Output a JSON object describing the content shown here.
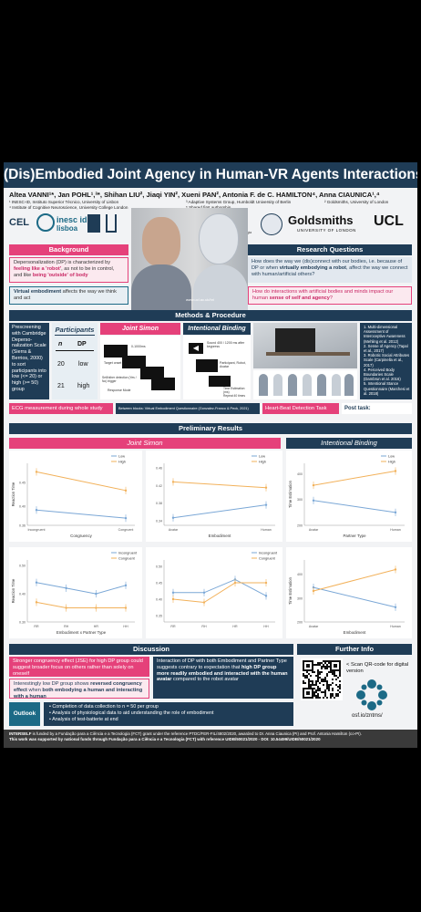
{
  "poster": {
    "title": "(Dis)Embodied Joint Agency in Human-VR Agents Interactions",
    "authors": "Altea VANNI¹*, Jan POHL¹,³*, Shihan LIU², Jiaqi YIN², Xueni PAN², Antonia F. de C. HAMILTON⁴, Anna CIAUNICA¹,⁴",
    "affiliations": [
      "¹ INESC-ID, Instituto Superior Técnico, University of Lisbon",
      "⁴ Institute of Cognitive Neuroscience, University College London",
      "³ Adaptive Systems Group, Humboldt University of Berlin",
      "* Shared first authorship",
      "² Goldsmiths, University of London"
    ],
    "logos": {
      "cel": "CEL",
      "inesc": "inesc id",
      "inesc_sub": "lisboa",
      "fct": "fct",
      "fct_sub": "Fundação para a Ciência e a Tecnologia",
      "gold": "Goldsmiths",
      "gold_sub": "UNIVERSITY OF LONDON",
      "ucl": "UCL"
    },
    "photo_caption": "www.ucl.ac.uk/hri",
    "background": {
      "header": "Background",
      "text1_pre": "Depersonalization (DP) is characterized by ",
      "text1_bold": "feeling like a 'robot'",
      "text1_mid": ", as not to be in control, and like ",
      "text1_bold2": "being 'outside' of body",
      "text2_pre": "Virtual embodiment",
      "text2_post": " affects the way we think and act"
    },
    "research": {
      "header": "Research Questions",
      "q1_pre": "How does the way we (dis)connect with our bodies, i.e. because of DP or when ",
      "q1_bold": "virtually embodying a robot",
      "q1_post": ", affect the way we connect with human/artificial others?",
      "q2_pre": "How do interactions with artificial bodies and minds impact our human ",
      "q2_bold": "sense of self and agency",
      "q2_post": "?"
    },
    "methods": {
      "header": "Methods & Procedure",
      "prescreen": "Prescreening with Cambridge Deperso-nalization Scale (Sierra & Berrios, 2000) to sort participants into low (<= 20) or high (>= 50) group",
      "participants_header": "Participants",
      "table_head": [
        "n",
        "DP"
      ],
      "table_rows": [
        [
          "20",
          "low"
        ],
        [
          "21",
          "high"
        ]
      ],
      "joint_simon": "Joint Simon",
      "intentional_binding": "Intentional Binding",
      "simon_labels": [
        "0-1000ms",
        "Target onset",
        "Self/other detection (Yes / No) trigger",
        "Response Mode"
      ],
      "binding_labels": [
        "Sound 400 / 1200 ms after keypress",
        "Participant, Robot, Avatar",
        "Time Estimation (ms)",
        "Repeat 40 times"
      ],
      "questionnaires": [
        "Multi-dimensional Assessment of Interoceptive Awareness (Mehling et al. 2012)",
        "Sense of Agency (Tapal et al., 2017)",
        "Robotic Social Attributes Scale (Carpinella et al., 2017)",
        "Perceived Body Boundaries Scale (Dambrun et al. 2016)",
        "Intentional Stance Questionnaire (Marchesi et al. 2018)"
      ],
      "ecg": "ECG measurement during whole study",
      "between_blocks": "Between blocks: Virtual Embodiment Questionnaire (Gonzalez-Franco & Peck, 2021)",
      "heartbeat": "Heart-Beat Detection Task",
      "posttask": "Post task:"
    },
    "results": {
      "header": "Preliminary Results",
      "joint_simon": "Joint Simon",
      "intentional_binding": "Intentional Binding"
    },
    "discussion": {
      "header": "Discussion",
      "d1": "Stronger congruency effect (JSE) for high DP group could suggest broader focus on others rather than solely on oneself",
      "d2_pre": "Interestingly low DP group shows ",
      "d2_bold": "reversed congruency effect",
      "d2_mid": " when ",
      "d2_bold2": "both embodying a human and interacting with a human",
      "d3_pre": "Interaction of DP with both Embodiment and Partner Type suggests contrary to expectation that ",
      "d3_bold": "high DP group more readily embodied and interacted with the human avatar",
      "d3_post": " compared to the robot avatar",
      "outlook_label": "Outlook",
      "outlook": [
        "Completion of data collection to n = 50 per group",
        "Analysis of physiological data to aid understanding the role of embodiment",
        "Analysis of test-batterie at end"
      ]
    },
    "further": {
      "header": "Further Info",
      "scan": "< Scan QR-code for digital version",
      "osf": "osf.io/zntms/"
    },
    "funding": {
      "line1_bold": "INTERSELF",
      "line1": " is funded by a Fundação para a Ciência e a Tecnologia (FCT) grant under the reference PTDC/FER-FIL/4802/2020, awarded to Dr. Anna Ciaunica (PI) and Prof. Antonia Hamilton (co-PI).",
      "line2": "This work was supported by national funds through Fundação para a Ciência e a Tecnologia (FCT) with reference UIDB/50021/2020 - DOI: 10.54499/UIDB/50021/2020"
    }
  },
  "colors": {
    "pink": "#e5417a",
    "navy": "#1f3c56",
    "teal": "#1c6a86",
    "low": "#7aa7d6",
    "high": "#f2b15a",
    "incongruent": "#7aa7d6",
    "congruent": "#f2b15a"
  },
  "chart_data": [
    {
      "type": "line",
      "xlabel": "Congruency",
      "ylabel": "Reaction Time",
      "categories": [
        "Incongruent",
        "Congruent"
      ],
      "ylim": [
        0.36,
        0.49
      ],
      "ticks": [
        "0.36",
        "0.40",
        "0.45"
      ],
      "series": [
        {
          "name": "Low",
          "values": [
            0.392,
            0.375
          ]
        },
        {
          "name": "High",
          "values": [
            0.472,
            0.433
          ]
        }
      ]
    },
    {
      "type": "line",
      "xlabel": "Embodiment",
      "ylabel": "",
      "categories": [
        "Avatar",
        "Human"
      ],
      "ylim": [
        0.33,
        0.47
      ],
      "ticks": [
        "0.34",
        "0.38",
        "0.42",
        "0.46"
      ],
      "series": [
        {
          "name": "Low",
          "values": [
            0.347,
            0.376
          ]
        },
        {
          "name": "High",
          "values": [
            0.428,
            0.415
          ]
        }
      ]
    },
    {
      "type": "line",
      "xlabel": "Partner Type",
      "ylabel": "Time Estimation",
      "categories": [
        "Avatar",
        "Human"
      ],
      "ylim": [
        200,
        440
      ],
      "ticks": [
        "200",
        "300",
        "400"
      ],
      "series": [
        {
          "name": "Low",
          "values": [
            296,
            250
          ]
        },
        {
          "name": "High",
          "values": [
            355,
            410
          ]
        }
      ]
    },
    {
      "type": "line",
      "xlabel": "Embodiment x Partner Type",
      "ylabel": "Reaction Time",
      "categories": [
        "RR",
        "RH",
        "HR",
        "HH"
      ],
      "ylim": [
        0.3,
        0.52
      ],
      "ticks": [
        "0.30",
        "0.40",
        "0.50"
      ],
      "series": [
        {
          "name": "Incongruent",
          "values": [
            0.44,
            0.42,
            0.4,
            0.43
          ]
        },
        {
          "name": "Congruent",
          "values": [
            0.37,
            0.35,
            0.35,
            0.35
          ]
        }
      ]
    },
    {
      "type": "line",
      "xlabel": "",
      "ylabel": "",
      "categories": [
        "RR",
        "RH",
        "HR",
        "HH"
      ],
      "ylim": [
        0.33,
        0.52
      ],
      "ticks": [
        "0.35",
        "0.40",
        "0.45",
        "0.50"
      ],
      "series": [
        {
          "name": "Incongruent",
          "values": [
            0.42,
            0.42,
            0.46,
            0.41
          ]
        },
        {
          "name": "Congruent",
          "values": [
            0.4,
            0.39,
            0.45,
            0.45
          ]
        }
      ]
    },
    {
      "type": "line",
      "xlabel": "Embodiment",
      "ylabel": "Time Estimation",
      "categories": [
        "Avatar",
        "Human"
      ],
      "ylim": [
        200,
        460
      ],
      "ticks": [
        "200",
        "300",
        "400"
      ],
      "series": [
        {
          "name": "",
          "values": [
            345,
            262
          ]
        },
        {
          "name": "",
          "values": [
            330,
            420
          ]
        }
      ]
    }
  ]
}
